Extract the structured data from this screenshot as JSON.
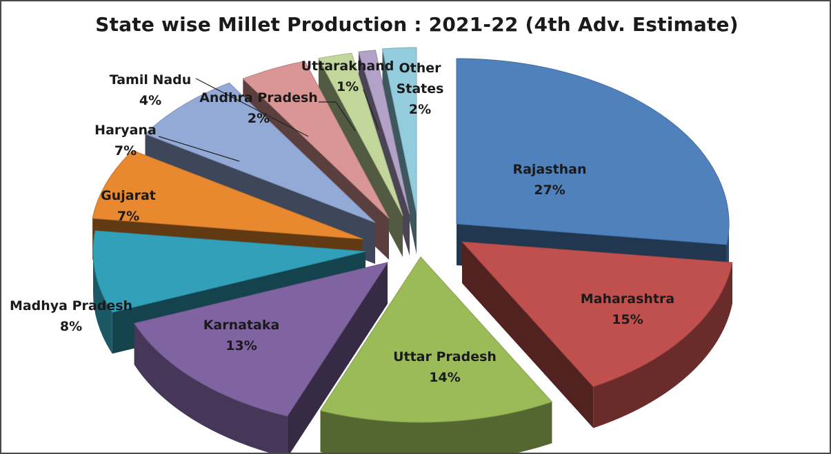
{
  "chart_data": {
    "type": "pie",
    "title": "State wise Millet Production : 2021-22 (4th Adv. Estimate)",
    "slices": [
      {
        "name": "Rajasthan",
        "value": 27,
        "label": "27%",
        "color": "#4f81bd"
      },
      {
        "name": "Maharashtra",
        "value": 15,
        "label": "15%",
        "color": "#c0504d"
      },
      {
        "name": "Uttar Pradesh",
        "value": 14,
        "label": "14%",
        "color": "#9bbb59"
      },
      {
        "name": "Karnataka",
        "value": 13,
        "label": "13%",
        "color": "#8064a2"
      },
      {
        "name": "Madhya Pradesh",
        "value": 8,
        "label": "8%",
        "color": "#31a0b8"
      },
      {
        "name": "Gujarat",
        "value": 7,
        "label": "7%",
        "color": "#e8892f"
      },
      {
        "name": "Haryana",
        "value": 7,
        "label": "7%",
        "color": "#93a9d6"
      },
      {
        "name": "Tamil Nadu",
        "value": 4,
        "label": "4%",
        "color": "#d99694"
      },
      {
        "name": "Andhra Pradesh",
        "value": 2,
        "label": "2%",
        "color": "#c3d69b"
      },
      {
        "name": "Uttarakhand",
        "value": 1,
        "label": "1%",
        "color": "#b3a2c7"
      },
      {
        "name": "Other States",
        "value": 2,
        "label": "2%",
        "color": "#93cddd"
      }
    ],
    "style": "3d-exploded"
  }
}
